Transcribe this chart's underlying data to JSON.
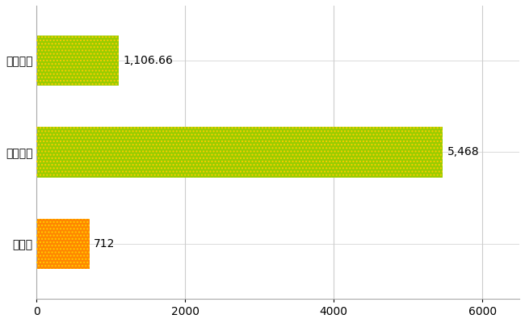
{
  "categories": [
    "全国平均",
    "全国最大",
    "栃木県"
  ],
  "values": [
    1106.66,
    5468,
    712
  ],
  "bar_colors": [
    "#99cc00",
    "#99cc00",
    "#ff8800"
  ],
  "bar_hatch_colors": [
    "#ffcc00",
    "#ffcc00",
    "#ffcc00"
  ],
  "bar_labels": [
    "1,106.66",
    "5,468",
    "712"
  ],
  "xlim": [
    0,
    6500
  ],
  "xticks": [
    0,
    2000,
    4000,
    6000
  ],
  "background_color": "#ffffff",
  "grid_color": "#cccccc",
  "label_fontsize": 10,
  "tick_fontsize": 10,
  "bar_height": 0.55,
  "figure_width": 6.5,
  "figure_height": 4.0,
  "dpi": 100
}
